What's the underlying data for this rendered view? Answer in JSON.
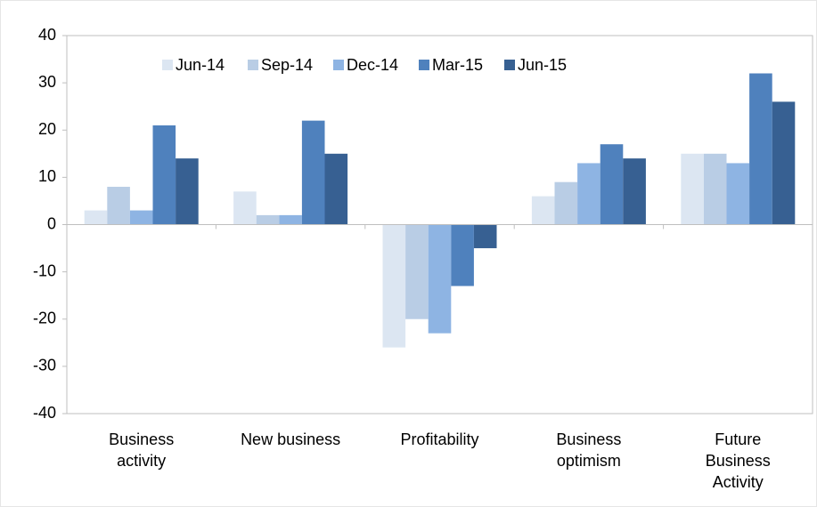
{
  "chart_data": {
    "type": "bar",
    "categories": [
      "Business activity",
      "New business",
      "Profitability",
      "Business optimism",
      "Future Business Activity"
    ],
    "series": [
      {
        "name": "Jun-14",
        "color": "#dce6f2",
        "values": [
          3,
          7,
          -26,
          6,
          15
        ]
      },
      {
        "name": "Sep-14",
        "color": "#b9cde5",
        "values": [
          8,
          2,
          -20,
          9,
          15
        ]
      },
      {
        "name": "Dec-14",
        "color": "#8eb4e3",
        "values": [
          3,
          2,
          -23,
          13,
          13
        ]
      },
      {
        "name": "Mar-15",
        "color": "#4f81bd",
        "values": [
          21,
          22,
          -13,
          17,
          32
        ]
      },
      {
        "name": "Jun-15",
        "color": "#376092",
        "values": [
          14,
          15,
          -5,
          14,
          26
        ]
      }
    ],
    "ylim": [
      -40,
      40
    ],
    "yticks": [
      -40,
      -30,
      -20,
      -10,
      0,
      10,
      20,
      30,
      40
    ],
    "grid": false,
    "legend": "top"
  }
}
